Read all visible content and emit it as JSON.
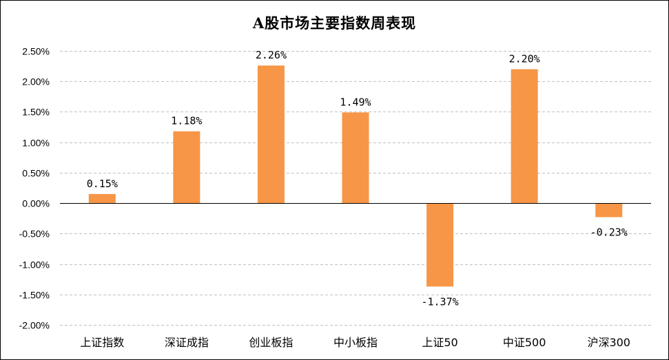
{
  "chart_data": {
    "type": "bar",
    "title": "A股市场主要指数周表现",
    "xlabel": "",
    "ylabel": "",
    "categories": [
      "上证指数",
      "深证成指",
      "创业板指",
      "中小板指",
      "上证50",
      "中证500",
      "沪深300"
    ],
    "values": [
      0.15,
      1.18,
      2.26,
      1.49,
      -1.37,
      2.2,
      -0.23
    ],
    "data_labels": [
      "0.15%",
      "1.18%",
      "2.26%",
      "1.49%",
      "-1.37%",
      "2.20%",
      "-0.23%"
    ],
    "ylim": [
      -2.0,
      2.5
    ],
    "yticks": [
      2.5,
      2.0,
      1.5,
      1.0,
      0.5,
      0.0,
      -0.5,
      -1.0,
      -1.5,
      -2.0
    ],
    "ytick_labels": [
      "2.50%",
      "2.00%",
      "1.50%",
      "1.00%",
      "0.50%",
      "0.00%",
      "-0.50%",
      "-1.00%",
      "-1.50%",
      "-2.00%"
    ],
    "grid": true,
    "legend": "none",
    "bar_color": "#F79646",
    "grid_color": "#BFBFBF",
    "axis_color": "#000000"
  }
}
